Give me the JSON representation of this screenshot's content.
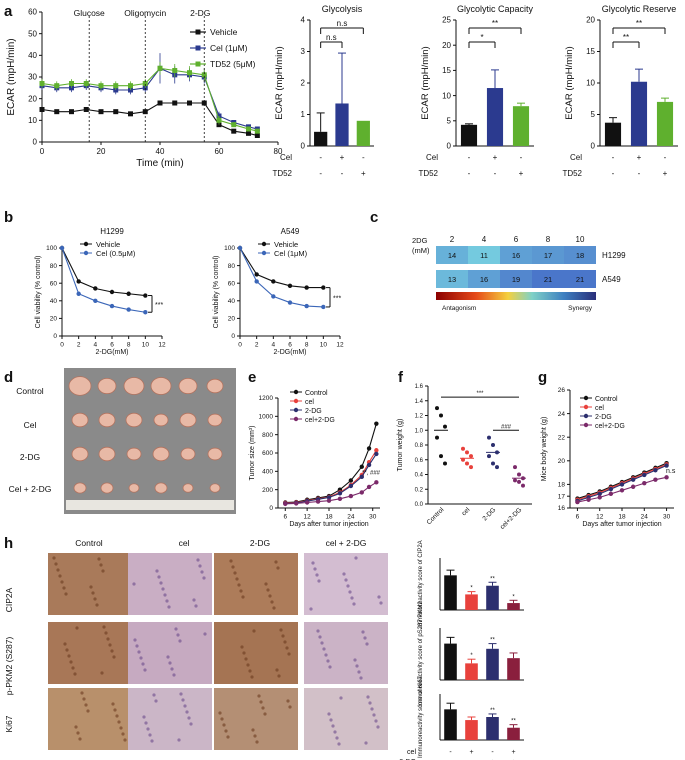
{
  "colors": {
    "black": "#111111",
    "blue": "#2b3a8f",
    "green": "#5fb02e",
    "red": "#e8413c",
    "darkblue": "#2c2f6e",
    "purple": "#6a2a8a"
  },
  "panels": {
    "a": "a",
    "b": "b",
    "c": "c",
    "d": "d",
    "e": "e",
    "f": "f",
    "g": "g",
    "h": "h"
  },
  "chart_data": [
    {
      "id": "a-line",
      "type": "line",
      "xlabel": "Time (min)",
      "ylabel": "ECAR (mpH/min)",
      "xlim": [
        0,
        80
      ],
      "ylim": [
        0,
        60
      ],
      "xticks": [
        0,
        20,
        40,
        60,
        80
      ],
      "yticks": [
        0,
        10,
        20,
        30,
        40,
        50,
        60
      ],
      "annotations": [
        {
          "x": 16,
          "text": "Glucose"
        },
        {
          "x": 35,
          "text": "Oligomycin"
        },
        {
          "x": 55,
          "text": "2-DG"
        }
      ],
      "x": [
        0,
        5,
        10,
        15,
        20,
        25,
        30,
        35,
        40,
        45,
        50,
        55,
        60,
        65,
        70,
        73
      ],
      "series": [
        {
          "name": "Vehicle",
          "color": "#111111",
          "marker": "square",
          "values": [
            15,
            14,
            14,
            15,
            14,
            14,
            13,
            14,
            18,
            18,
            18,
            18,
            8,
            5,
            4,
            3
          ],
          "err": [
            1,
            1,
            1,
            1,
            1,
            1,
            1,
            1,
            1,
            1,
            1,
            1,
            1,
            1,
            1,
            1
          ]
        },
        {
          "name": "Cel (1μM)",
          "color": "#2b3a8f",
          "marker": "square",
          "values": [
            26,
            25,
            25,
            26,
            25,
            24,
            24,
            25,
            34,
            31,
            31,
            30,
            12,
            9,
            7,
            6
          ],
          "err": [
            2,
            2,
            2,
            2,
            2,
            2,
            2,
            2,
            7,
            4,
            3,
            3,
            2,
            1,
            1,
            1
          ]
        },
        {
          "name": "TD52 (5μM)",
          "color": "#5fb02e",
          "marker": "square",
          "values": [
            27,
            26,
            27,
            27,
            26,
            26,
            26,
            27,
            34,
            33,
            32,
            31,
            10,
            8,
            6,
            5
          ],
          "err": [
            2,
            2,
            2,
            2,
            2,
            2,
            2,
            2,
            3,
            3,
            3,
            3,
            2,
            1,
            1,
            1
          ]
        }
      ]
    },
    {
      "id": "a-glycolysis",
      "type": "bar",
      "title": "Glycolysis",
      "ylabel": "ECAR (mpH/min)",
      "ylim": [
        0,
        4
      ],
      "yticks": [
        0,
        1,
        2,
        3,
        4
      ],
      "values": [
        0.45,
        1.35,
        0.8
      ],
      "err": [
        0.6,
        1.6,
        0
      ],
      "colors": [
        "#111111",
        "#2b3a8f",
        "#5fb02e"
      ],
      "sig": [
        {
          "text": "n.s",
          "from": 0,
          "to": 1
        },
        {
          "text": "n.s",
          "from": 0,
          "to": 2
        }
      ],
      "rows": [
        {
          "label": "Cel",
          "values": [
            "-",
            "+",
            "-"
          ]
        },
        {
          "label": "TD52",
          "values": [
            "-",
            "-",
            "+"
          ]
        }
      ]
    },
    {
      "id": "a-capacity",
      "type": "bar",
      "title": "Glycolytic Capacity",
      "ylabel": "ECAR (mpH/min)",
      "ylim": [
        0,
        25
      ],
      "yticks": [
        0,
        5,
        10,
        15,
        20,
        25
      ],
      "values": [
        4.2,
        11.5,
        7.9
      ],
      "err": [
        0.2,
        3.6,
        0.6
      ],
      "colors": [
        "#111111",
        "#2b3a8f",
        "#5fb02e"
      ],
      "sig": [
        {
          "text": "*",
          "from": 0,
          "to": 1
        },
        {
          "text": "**",
          "from": 0,
          "to": 2
        }
      ],
      "rows": [
        {
          "label": "Cel",
          "values": [
            "-",
            "+",
            "-"
          ]
        },
        {
          "label": "TD52",
          "values": [
            "-",
            "-",
            "+"
          ]
        }
      ]
    },
    {
      "id": "a-reserve",
      "type": "bar",
      "title": "Glycolytic Reserve",
      "ylabel": "ECAR (mpH/min)",
      "ylim": [
        0,
        20
      ],
      "yticks": [
        0,
        5,
        10,
        15,
        20
      ],
      "values": [
        3.7,
        10.2,
        7.0
      ],
      "err": [
        0.8,
        2.0,
        0.6
      ],
      "colors": [
        "#111111",
        "#2b3a8f",
        "#5fb02e"
      ],
      "sig": [
        {
          "text": "**",
          "from": 0,
          "to": 1
        },
        {
          "text": "**",
          "from": 0,
          "to": 2
        }
      ],
      "rows": [
        {
          "label": "Cel",
          "values": [
            "-",
            "+",
            "-"
          ]
        },
        {
          "label": "TD52",
          "values": [
            "-",
            "-",
            "+"
          ]
        }
      ]
    },
    {
      "id": "b-h1299",
      "type": "line",
      "title": "H1299",
      "xlabel": "2-DG(mM)",
      "ylabel": "Cell viability (% control)",
      "xlim": [
        0,
        12
      ],
      "ylim": [
        0,
        100
      ],
      "xticks": [
        0,
        2,
        4,
        6,
        8,
        10,
        12
      ],
      "yticks": [
        0,
        20,
        40,
        60,
        80,
        100
      ],
      "x": [
        0,
        2,
        4,
        6,
        8,
        10
      ],
      "series": [
        {
          "name": "Vehicle",
          "color": "#111111",
          "values": [
            100,
            62,
            54,
            50,
            48,
            46
          ]
        },
        {
          "name": "Cel (0.5μM)",
          "color": "#3b66b8",
          "values": [
            100,
            48,
            40,
            34,
            30,
            27
          ]
        }
      ],
      "sig": "***"
    },
    {
      "id": "b-a549",
      "type": "line",
      "title": "A549",
      "xlabel": "2-DG(mM)",
      "ylabel": "Cell viability (% control)",
      "xlim": [
        0,
        12
      ],
      "ylim": [
        0,
        100
      ],
      "xticks": [
        0,
        2,
        4,
        6,
        8,
        10,
        12
      ],
      "yticks": [
        0,
        20,
        40,
        60,
        80,
        100
      ],
      "x": [
        0,
        2,
        4,
        6,
        8,
        10
      ],
      "series": [
        {
          "name": "Vehicle",
          "color": "#111111",
          "values": [
            100,
            70,
            62,
            57,
            55,
            55
          ]
        },
        {
          "name": "Cel (1μM)",
          "color": "#3b66b8",
          "values": [
            100,
            62,
            45,
            38,
            34,
            33
          ]
        }
      ],
      "sig": "***"
    },
    {
      "id": "c-heatmap",
      "type": "heatmap",
      "xlabel": "2DG\n(mM)",
      "columns": [
        "2",
        "4",
        "6",
        "8",
        "10"
      ],
      "rows": [
        {
          "name": "H1299",
          "values": [
            14,
            11,
            16,
            17,
            18
          ]
        },
        {
          "name": "A549",
          "values": [
            13,
            16,
            19,
            21,
            21
          ]
        }
      ],
      "scale_low": "Antagonism",
      "scale_high": "Synergy"
    },
    {
      "id": "e-tumor-size",
      "type": "line",
      "xlabel": "Days after tumor injection",
      "ylabel": "Tumor size (mm³)",
      "xlim": [
        4,
        32
      ],
      "ylim": [
        0,
        1200
      ],
      "xticks": [
        6,
        12,
        18,
        24,
        30
      ],
      "yticks": [
        0,
        200,
        400,
        600,
        800,
        1000,
        1200
      ],
      "x": [
        6,
        9,
        12,
        15,
        18,
        21,
        24,
        27,
        29,
        31
      ],
      "series": [
        {
          "name": "Control",
          "color": "#111111",
          "values": [
            60,
            65,
            90,
            110,
            130,
            200,
            300,
            450,
            650,
            920
          ]
        },
        {
          "name": "cel",
          "color": "#e8413c",
          "values": [
            55,
            60,
            80,
            100,
            120,
            170,
            250,
            360,
            500,
            630
          ]
        },
        {
          "name": "2-DG",
          "color": "#2c2f6e",
          "values": [
            50,
            55,
            75,
            95,
            115,
            160,
            240,
            340,
            470,
            590
          ]
        },
        {
          "name": "cel+2-DG",
          "color": "#7b2a6a",
          "values": [
            45,
            50,
            60,
            70,
            80,
            100,
            130,
            170,
            230,
            280
          ]
        }
      ],
      "sig": "**, ###"
    },
    {
      "id": "f-tumor-weight",
      "type": "scatter",
      "ylabel": "Tumor weight (g)",
      "ylim": [
        0,
        1.6
      ],
      "yticks": [
        0,
        0.2,
        0.4,
        0.6,
        0.8,
        1.0,
        1.2,
        1.4,
        1.6
      ],
      "categories": [
        "Control",
        "cel",
        "2-DG",
        "cel+2-DG"
      ],
      "points": [
        [
          1.3,
          1.2,
          1.05,
          0.9,
          0.65,
          0.55
        ],
        [
          0.75,
          0.7,
          0.65,
          0.6,
          0.55,
          0.5
        ],
        [
          0.9,
          0.8,
          0.7,
          0.65,
          0.55,
          0.5
        ],
        [
          0.5,
          0.4,
          0.35,
          0.32,
          0.3,
          0.25
        ]
      ],
      "means": [
        1.0,
        0.62,
        0.7,
        0.35
      ],
      "sig": [
        "***",
        "###"
      ]
    },
    {
      "id": "g-body-weight",
      "type": "line",
      "xlabel": "Days after tumor injection",
      "ylabel": "Mice body weight (g)",
      "xlim": [
        4,
        32
      ],
      "ylim": [
        16,
        26
      ],
      "xticks": [
        6,
        12,
        18,
        24,
        30
      ],
      "yticks": [
        16,
        17,
        18,
        20,
        22,
        24,
        26
      ],
      "x": [
        6,
        9,
        12,
        15,
        18,
        21,
        24,
        27,
        30
      ],
      "series": [
        {
          "name": "Control",
          "color": "#111111",
          "values": [
            16.8,
            17.1,
            17.4,
            17.8,
            18.2,
            18.6,
            19.0,
            19.4,
            19.8
          ]
        },
        {
          "name": "cel",
          "color": "#e8413c",
          "values": [
            16.7,
            17.0,
            17.3,
            17.7,
            18.1,
            18.5,
            18.9,
            19.3,
            19.7
          ]
        },
        {
          "name": "2-DG",
          "color": "#2c2f6e",
          "values": [
            16.6,
            16.9,
            17.2,
            17.6,
            18.0,
            18.4,
            18.8,
            19.2,
            19.6
          ]
        },
        {
          "name": "cel+2-DG",
          "color": "#7b2a6a",
          "values": [
            16.5,
            16.7,
            16.9,
            17.2,
            17.5,
            17.8,
            18.1,
            18.4,
            18.6
          ]
        }
      ],
      "sig": "n.s"
    },
    {
      "id": "h-cip2a",
      "type": "bar",
      "ylabel": "Immunoreactivity score of CIP2A",
      "ylim": [
        0,
        15
      ],
      "values": [
        10,
        4.5,
        7,
        2
      ],
      "err": [
        1.5,
        0.8,
        1,
        0.8
      ],
      "colors": [
        "#111111",
        "#e8413c",
        "#2c2f6e",
        "#8a1f3d"
      ],
      "sig": [
        "",
        "*",
        "**",
        "*"
      ]
    },
    {
      "id": "h-pkm2",
      "type": "bar",
      "ylabel": "Immunoreactivity score of pS287 PKM2",
      "ylim": [
        0,
        10
      ],
      "values": [
        7,
        3.2,
        6,
        4.2
      ],
      "err": [
        1.2,
        0.8,
        1,
        1
      ],
      "colors": [
        "#111111",
        "#e8413c",
        "#2c2f6e",
        "#8a1f3d"
      ],
      "sig": [
        "",
        "*",
        "**",
        ""
      ]
    },
    {
      "id": "h-ki67",
      "type": "bar",
      "ylabel": "Immunoreactivity score of Ki67",
      "ylim": [
        0,
        15
      ],
      "values": [
        10,
        6.5,
        7.5,
        4
      ],
      "err": [
        2,
        1,
        1,
        1
      ],
      "colors": [
        "#111111",
        "#e8413c",
        "#2c2f6e",
        "#8a1f3d"
      ],
      "sig": [
        "",
        "",
        "**",
        "**"
      ],
      "rows": [
        {
          "label": "cel",
          "values": [
            "-",
            "+",
            "-",
            "+"
          ]
        },
        {
          "label": "2-DG",
          "values": [
            "-",
            "-",
            "+",
            "+"
          ]
        }
      ]
    }
  ],
  "photo_d": {
    "rows": [
      "Control",
      "Cel",
      "2-DG",
      "Cel + 2-DG"
    ]
  },
  "photo_h": {
    "columns": [
      "Control",
      "cel",
      "2-DG",
      "cel + 2-DG"
    ],
    "rows": [
      "CIP2A",
      "p-PKM2 (S287)",
      "Ki67"
    ]
  }
}
